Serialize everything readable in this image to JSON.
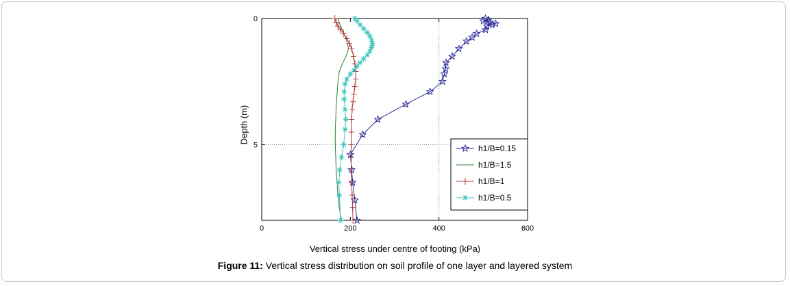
{
  "caption": {
    "label": "Figure 11:",
    "text": " Vertical stress distribution on soil profile of one layer and layered system"
  },
  "chart_data": {
    "type": "line",
    "xlabel": "Vertical stress under centre of footing (kPa)",
    "ylabel": "Depth (m)",
    "xlim": [
      0,
      600
    ],
    "ylim": [
      0,
      8
    ],
    "y_inverted": true,
    "x_ticks": [
      0,
      200,
      400,
      600
    ],
    "y_ticks": [
      0,
      5
    ],
    "grid": "dotted at x=400 and y=5",
    "legend_position": "lower-right",
    "series": [
      {
        "name": "h1/B=0.15",
        "color": "#2b2b9a",
        "marker": "pentagram",
        "x": [
          505,
          512,
          500,
          515,
          528,
          520,
          508,
          505,
          485,
          475,
          462,
          445,
          430,
          416,
          415,
          412,
          408,
          380,
          325,
          262,
          228,
          200,
          203,
          205,
          210,
          215
        ],
        "y": [
          0,
          0.05,
          0.1,
          0.15,
          0.2,
          0.25,
          0.3,
          0.45,
          0.6,
          0.75,
          0.9,
          1.2,
          1.5,
          1.75,
          2.0,
          2.2,
          2.5,
          2.9,
          3.4,
          4.0,
          4.6,
          5.4,
          6.0,
          6.5,
          7.2,
          8.0
        ]
      },
      {
        "name": "h1/B=1.5",
        "color": "#2e7d2e",
        "marker": "none",
        "x": [
          172,
          178,
          186,
          192,
          196,
          190,
          182,
          175,
          172,
          170,
          168,
          167,
          166,
          166,
          167,
          168,
          170,
          172,
          175,
          178,
          180
        ],
        "y": [
          0,
          0.3,
          0.6,
          0.9,
          1.2,
          1.5,
          1.8,
          2.1,
          2.5,
          3.0,
          3.5,
          4.0,
          4.5,
          5.0,
          5.5,
          6.0,
          6.5,
          7.0,
          7.5,
          7.8,
          8.0
        ]
      },
      {
        "name": "h1/B=1",
        "color": "#b03a3a",
        "marker": "plus",
        "x": [
          165,
          168,
          172,
          178,
          185,
          192,
          198,
          203,
          207,
          210,
          212,
          212,
          210,
          208,
          206,
          204,
          203,
          202,
          202,
          202,
          202,
          203,
          204,
          205,
          206
        ],
        "y": [
          0,
          0.15,
          0.3,
          0.45,
          0.6,
          0.8,
          1.0,
          1.2,
          1.5,
          1.8,
          2.1,
          2.4,
          2.7,
          3.0,
          3.3,
          3.6,
          4.0,
          4.5,
          5.0,
          5.5,
          6.0,
          6.5,
          7.0,
          7.5,
          8.0
        ]
      },
      {
        "name": "h1/B=0.5",
        "color": "#33c3b8",
        "marker": "asterisk",
        "x": [
          210,
          215,
          222,
          230,
          238,
          244,
          248,
          250,
          248,
          244,
          238,
          230,
          222,
          215,
          208,
          200,
          192,
          188,
          186,
          186,
          188,
          190,
          188,
          185,
          180,
          176,
          174,
          175,
          178
        ],
        "y": [
          0,
          0.1,
          0.25,
          0.4,
          0.55,
          0.7,
          0.85,
          1.0,
          1.15,
          1.3,
          1.45,
          1.6,
          1.75,
          1.9,
          2.05,
          2.2,
          2.4,
          2.6,
          2.9,
          3.2,
          3.6,
          4.0,
          4.4,
          5.0,
          5.5,
          6.0,
          6.5,
          7.0,
          8.0
        ]
      }
    ]
  }
}
